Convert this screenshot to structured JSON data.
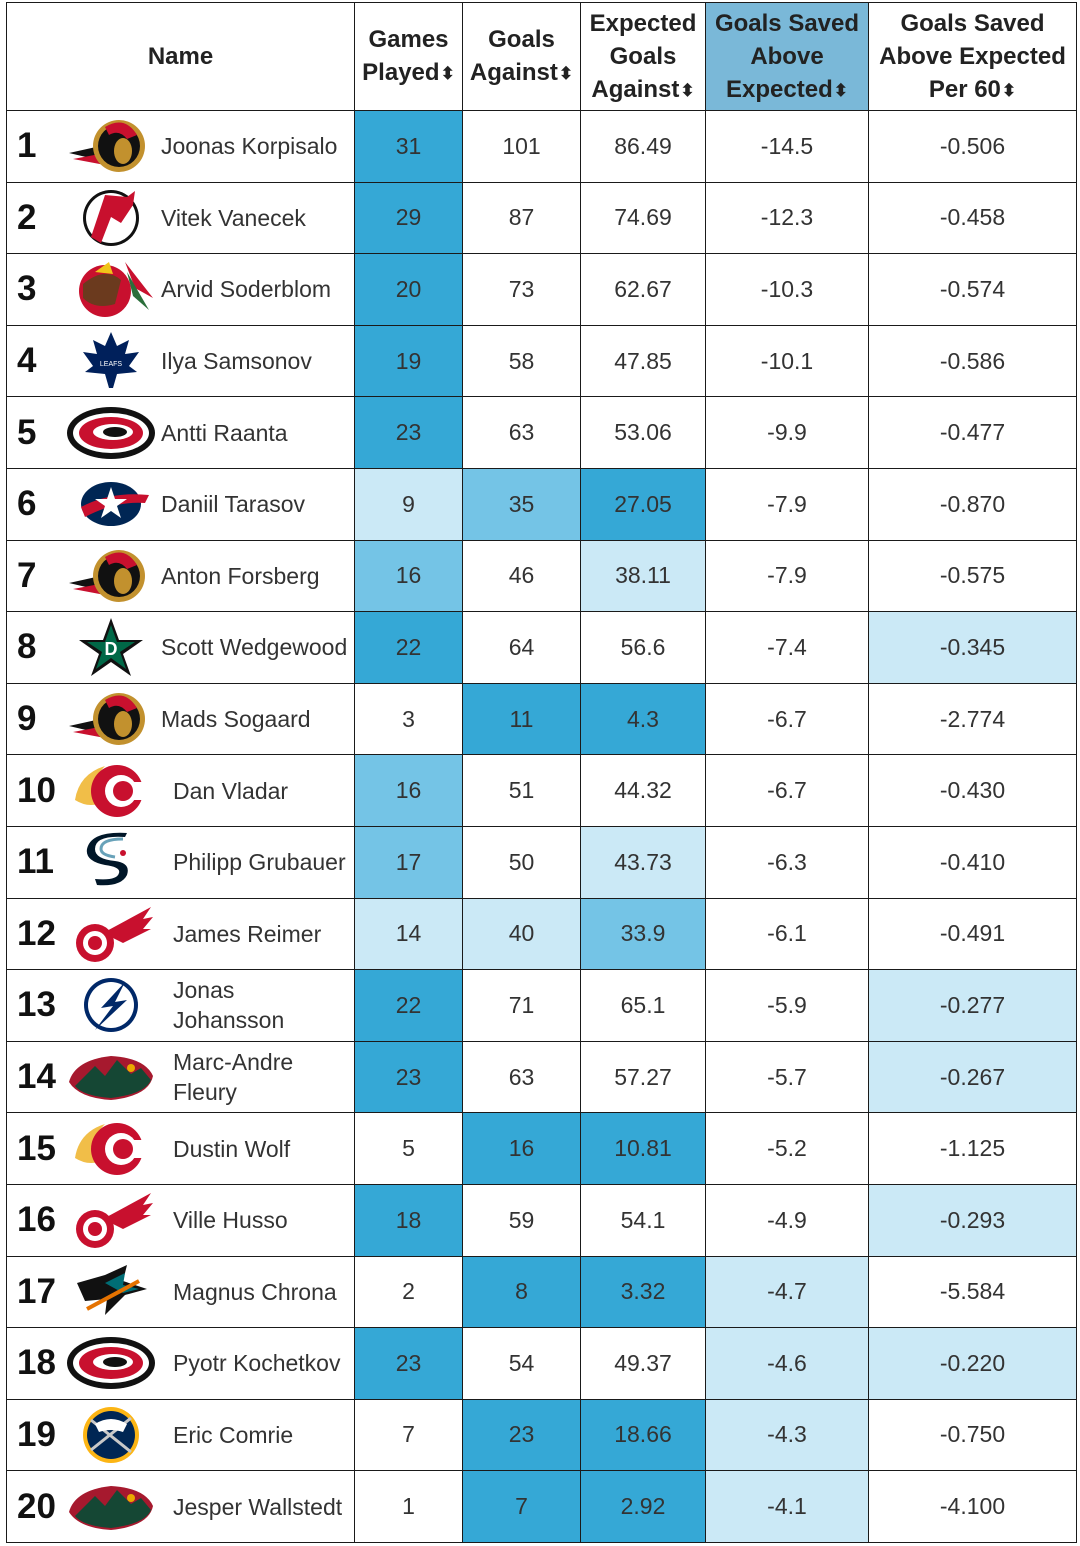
{
  "headers": {
    "name": "Name",
    "gp": [
      "Games",
      "Played"
    ],
    "ga": [
      "Goals",
      "Against"
    ],
    "xga": [
      "Expected",
      "Goals",
      "Against"
    ],
    "gsae": [
      "Goals Saved",
      "Above",
      "Expected"
    ],
    "gsae60": [
      "Goals Saved",
      "Above Expected",
      "Per 60"
    ],
    "sort_glyph": "⬍"
  },
  "colors": {
    "dark": "#35a8d6",
    "mid": "#74c4e6",
    "light": "#cbe9f6",
    "sorted_header": "#7ab8d8"
  },
  "rows": [
    {
      "rank": "1",
      "team_icon": "ottawa-senators-logo-icon",
      "name": "Joonas Korpisalo",
      "gp": "31",
      "ga": "101",
      "xga": "86.49",
      "gsae": "-14.5",
      "gsae60": "-0.506",
      "shade": [
        "dark",
        "none",
        "none",
        "none",
        "none"
      ]
    },
    {
      "rank": "2",
      "team_icon": "new-jersey-devils-logo-icon",
      "name": "Vitek Vanecek",
      "gp": "29",
      "ga": "87",
      "xga": "74.69",
      "gsae": "-12.3",
      "gsae60": "-0.458",
      "shade": [
        "dark",
        "none",
        "none",
        "none",
        "none"
      ]
    },
    {
      "rank": "3",
      "team_icon": "chicago-blackhawks-logo-icon",
      "name": "Arvid Soderblom",
      "gp": "20",
      "ga": "73",
      "xga": "62.67",
      "gsae": "-10.3",
      "gsae60": "-0.574",
      "shade": [
        "dark",
        "none",
        "none",
        "none",
        "none"
      ]
    },
    {
      "rank": "4",
      "team_icon": "toronto-maple-leafs-logo-icon",
      "name": "Ilya Samsonov",
      "gp": "19",
      "ga": "58",
      "xga": "47.85",
      "gsae": "-10.1",
      "gsae60": "-0.586",
      "shade": [
        "dark",
        "none",
        "none",
        "none",
        "none"
      ]
    },
    {
      "rank": "5",
      "team_icon": "carolina-hurricanes-logo-icon",
      "name": "Antti Raanta",
      "gp": "23",
      "ga": "63",
      "xga": "53.06",
      "gsae": "-9.9",
      "gsae60": "-0.477",
      "shade": [
        "dark",
        "none",
        "none",
        "none",
        "none"
      ]
    },
    {
      "rank": "6",
      "team_icon": "columbus-blue-jackets-logo-icon",
      "name": "Daniil Tarasov",
      "gp": "9",
      "ga": "35",
      "xga": "27.05",
      "gsae": "-7.9",
      "gsae60": "-0.870",
      "shade": [
        "light",
        "mid",
        "dark",
        "none",
        "none"
      ]
    },
    {
      "rank": "7",
      "team_icon": "ottawa-senators-logo-icon",
      "name": "Anton Forsberg",
      "gp": "16",
      "ga": "46",
      "xga": "38.11",
      "gsae": "-7.9",
      "gsae60": "-0.575",
      "shade": [
        "mid",
        "none",
        "light",
        "none",
        "none"
      ]
    },
    {
      "rank": "8",
      "team_icon": "dallas-stars-logo-icon",
      "name": "Scott Wedgewood",
      "gp": "22",
      "ga": "64",
      "xga": "56.6",
      "gsae": "-7.4",
      "gsae60": "-0.345",
      "shade": [
        "dark",
        "none",
        "none",
        "none",
        "light"
      ]
    },
    {
      "rank": "9",
      "team_icon": "ottawa-senators-logo-icon",
      "name": "Mads Sogaard",
      "gp": "3",
      "ga": "11",
      "xga": "4.3",
      "gsae": "-6.7",
      "gsae60": "-2.774",
      "shade": [
        "none",
        "dark",
        "dark",
        "none",
        "none"
      ]
    },
    {
      "rank": "10",
      "team_icon": "calgary-flames-logo-icon",
      "name": "Dan Vladar",
      "gp": "16",
      "ga": "51",
      "xga": "44.32",
      "gsae": "-6.7",
      "gsae60": "-0.430",
      "shade": [
        "mid",
        "none",
        "none",
        "none",
        "none"
      ]
    },
    {
      "rank": "11",
      "team_icon": "seattle-kraken-logo-icon",
      "name": "Philipp Grubauer",
      "gp": "17",
      "ga": "50",
      "xga": "43.73",
      "gsae": "-6.3",
      "gsae60": "-0.410",
      "shade": [
        "mid",
        "none",
        "light",
        "none",
        "none"
      ]
    },
    {
      "rank": "12",
      "team_icon": "detroit-red-wings-logo-icon",
      "name": "James Reimer",
      "gp": "14",
      "ga": "40",
      "xga": "33.9",
      "gsae": "-6.1",
      "gsae60": "-0.491",
      "shade": [
        "light",
        "light",
        "mid",
        "none",
        "none"
      ]
    },
    {
      "rank": "13",
      "team_icon": "tampa-bay-lightning-logo-icon",
      "name": "Jonas Johansson",
      "gp": "22",
      "ga": "71",
      "xga": "65.1",
      "gsae": "-5.9",
      "gsae60": "-0.277",
      "shade": [
        "dark",
        "none",
        "none",
        "none",
        "light"
      ]
    },
    {
      "rank": "14",
      "team_icon": "minnesota-wild-logo-icon",
      "name": "Marc-Andre Fleury",
      "gp": "23",
      "ga": "63",
      "xga": "57.27",
      "gsae": "-5.7",
      "gsae60": "-0.267",
      "shade": [
        "dark",
        "none",
        "none",
        "none",
        "light"
      ]
    },
    {
      "rank": "15",
      "team_icon": "calgary-flames-logo-icon",
      "name": "Dustin Wolf",
      "gp": "5",
      "ga": "16",
      "xga": "10.81",
      "gsae": "-5.2",
      "gsae60": "-1.125",
      "shade": [
        "none",
        "dark",
        "dark",
        "none",
        "none"
      ]
    },
    {
      "rank": "16",
      "team_icon": "detroit-red-wings-logo-icon",
      "name": "Ville Husso",
      "gp": "18",
      "ga": "59",
      "xga": "54.1",
      "gsae": "-4.9",
      "gsae60": "-0.293",
      "shade": [
        "dark",
        "none",
        "none",
        "none",
        "light"
      ]
    },
    {
      "rank": "17",
      "team_icon": "san-jose-sharks-logo-icon",
      "name": "Magnus Chrona",
      "gp": "2",
      "ga": "8",
      "xga": "3.32",
      "gsae": "-4.7",
      "gsae60": "-5.584",
      "shade": [
        "none",
        "dark",
        "dark",
        "light",
        "none"
      ]
    },
    {
      "rank": "18",
      "team_icon": "carolina-hurricanes-logo-icon",
      "name": "Pyotr Kochetkov",
      "gp": "23",
      "ga": "54",
      "xga": "49.37",
      "gsae": "-4.6",
      "gsae60": "-0.220",
      "shade": [
        "dark",
        "none",
        "none",
        "light",
        "light"
      ]
    },
    {
      "rank": "19",
      "team_icon": "buffalo-sabres-logo-icon",
      "name": "Eric Comrie",
      "gp": "7",
      "ga": "23",
      "xga": "18.66",
      "gsae": "-4.3",
      "gsae60": "-0.750",
      "shade": [
        "none",
        "dark",
        "dark",
        "light",
        "none"
      ]
    },
    {
      "rank": "20",
      "team_icon": "minnesota-wild-logo-icon",
      "name": "Jesper Wallstedt",
      "gp": "1",
      "ga": "7",
      "xga": "2.92",
      "gsae": "-4.1",
      "gsae60": "-4.100",
      "shade": [
        "none",
        "dark",
        "dark",
        "light",
        "none"
      ]
    }
  ]
}
